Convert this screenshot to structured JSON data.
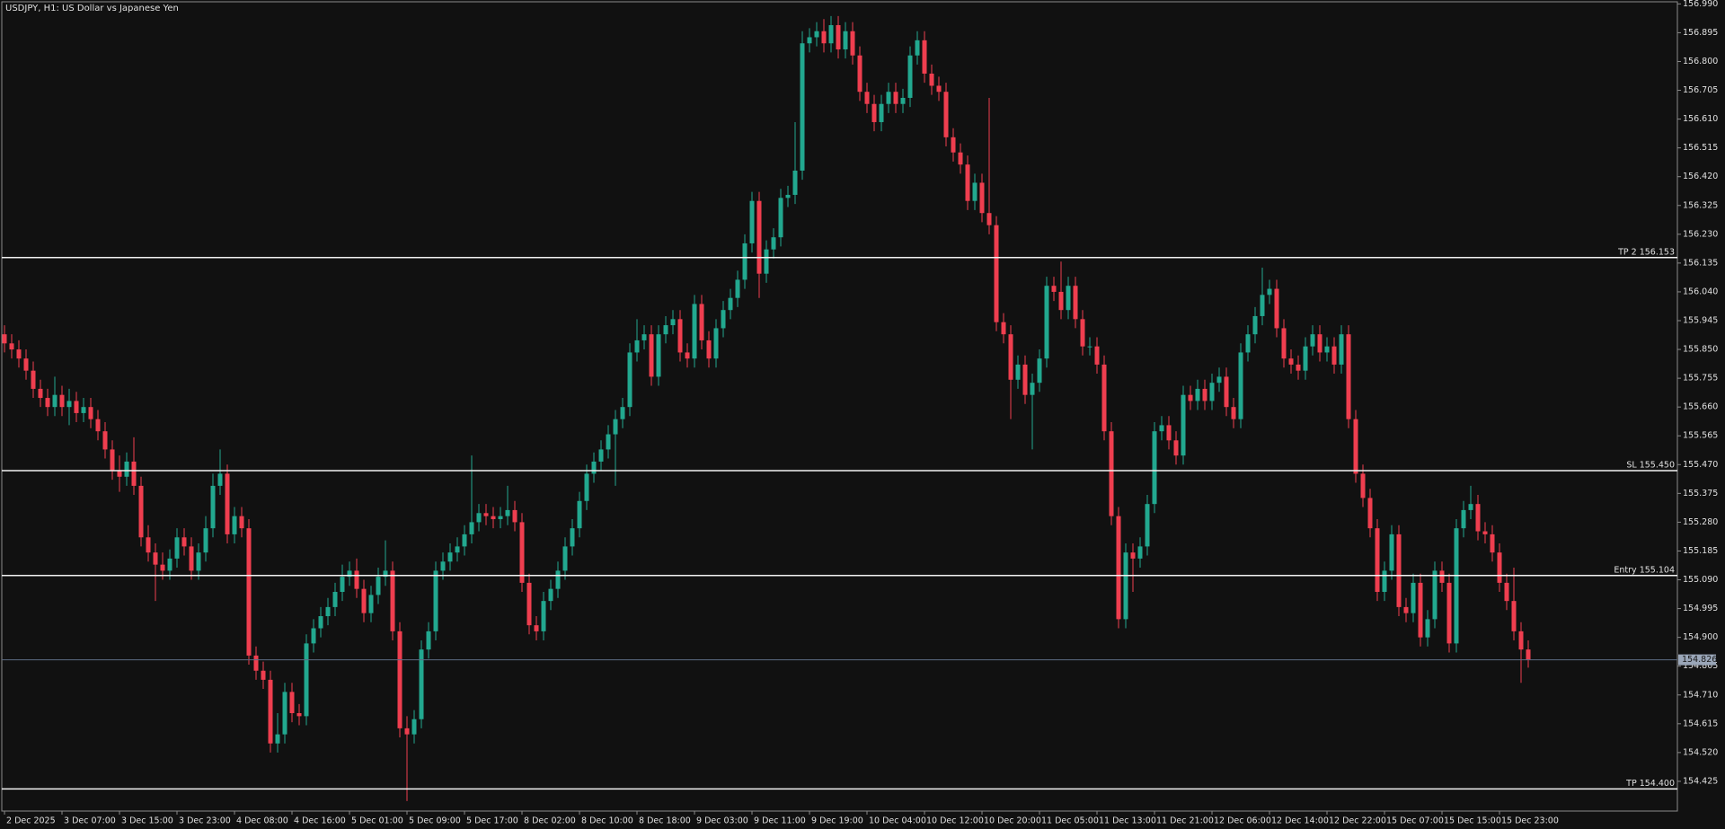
{
  "chart_data": {
    "type": "candlestick",
    "title": "USDJPY, H1:  US Dollar vs Japanese Yen",
    "up_color": "#22a88f",
    "down_color": "#ef3e4f",
    "ylim": [
      154.327,
      156.997
    ],
    "yticks": [
      {
        "value": 156.99,
        "label": "156.990"
      },
      156.895,
      {
        "value": 156.8,
        "label": "156.800"
      },
      156.705,
      {
        "value": 156.61,
        "label": "156.610"
      },
      156.515,
      {
        "value": 156.42,
        "label": "156.420"
      },
      156.325,
      {
        "value": 156.23,
        "label": "156.230"
      },
      156.135,
      {
        "value": 156.04,
        "label": "156.040"
      },
      155.945,
      {
        "value": 155.85,
        "label": "155.850"
      },
      155.755,
      {
        "value": 155.66,
        "label": "155.660"
      },
      155.565,
      {
        "value": 155.47,
        "label": "155.470"
      },
      155.375,
      {
        "value": 155.28,
        "label": "155.280"
      },
      155.185,
      {
        "value": 155.09,
        "label": "155.090"
      },
      154.995,
      {
        "value": 154.9,
        "label": "154.900"
      },
      154.805,
      {
        "value": 154.71,
        "label": "154.710"
      },
      154.615,
      {
        "value": 154.52,
        "label": "154.520"
      },
      154.425
    ],
    "levels": [
      {
        "value": 156.153,
        "label": "TP 2 156.153"
      },
      {
        "value": 155.45,
        "label": "SL 155.450"
      },
      {
        "value": 155.104,
        "label": "Entry 155.104"
      },
      {
        "value": 154.4,
        "label": "TP 154.400"
      }
    ],
    "price_line": {
      "value": 154.826,
      "label": "154.826"
    },
    "categories": [
      "2 Dec 2025",
      null,
      null,
      null,
      null,
      null,
      null,
      null,
      "3 Dec 07:00",
      null,
      null,
      null,
      null,
      null,
      null,
      null,
      "3 Dec 15:00",
      null,
      null,
      null,
      null,
      null,
      null,
      null,
      "3 Dec 23:00",
      null,
      null,
      null,
      null,
      null,
      null,
      null,
      "4 Dec 08:00",
      null,
      null,
      null,
      null,
      null,
      null,
      null,
      "4 Dec 16:00",
      null,
      null,
      null,
      null,
      null,
      null,
      null,
      "5 Dec 01:00",
      null,
      null,
      null,
      null,
      null,
      null,
      null,
      "5 Dec 09:00",
      null,
      null,
      null,
      null,
      null,
      null,
      null,
      "5 Dec 17:00",
      null,
      null,
      null,
      null,
      null,
      null,
      null,
      "8 Dec 02:00",
      null,
      null,
      null,
      null,
      null,
      null,
      null,
      "8 Dec 10:00",
      null,
      null,
      null,
      null,
      null,
      null,
      null,
      "8 Dec 18:00",
      null,
      null,
      null,
      null,
      null,
      null,
      null,
      "9 Dec 03:00",
      null,
      null,
      null,
      null,
      null,
      null,
      null,
      "9 Dec 11:00",
      null,
      null,
      null,
      null,
      null,
      null,
      null,
      "9 Dec 19:00",
      null,
      null,
      null,
      null,
      null,
      null,
      null,
      "10 Dec 04:00",
      null,
      null,
      null,
      null,
      null,
      null,
      null,
      "10 Dec 12:00",
      null,
      null,
      null,
      null,
      null,
      null,
      null,
      "10 Dec 20:00",
      null,
      null,
      null,
      null,
      null,
      null,
      null,
      "11 Dec 05:00",
      null,
      null,
      null,
      null,
      null,
      null,
      null,
      "11 Dec 13:00",
      null,
      null,
      null,
      null,
      null,
      null,
      null,
      "11 Dec 21:00",
      null,
      null,
      null,
      null,
      null,
      null,
      null,
      "12 Dec 06:00",
      null,
      null,
      null,
      null,
      null,
      null,
      null,
      "12 Dec 14:00",
      null,
      null,
      null,
      null,
      null,
      null,
      null,
      "12 Dec 22:00",
      null,
      null,
      null,
      null,
      null,
      null,
      null,
      "15 Dec 07:00",
      null,
      null,
      null,
      null,
      null,
      null,
      null,
      "15 Dec 15:00",
      null,
      null,
      null,
      null,
      null,
      null,
      null,
      "15 Dec 23:00",
      null,
      null,
      null,
      null
    ],
    "open": [
      155.9,
      155.87,
      155.85,
      155.82,
      155.78,
      155.72,
      155.69,
      155.66,
      155.7,
      155.66,
      155.68,
      155.64,
      155.66,
      155.62,
      155.58,
      155.52,
      155.45,
      155.43,
      155.48,
      155.4,
      155.23,
      155.18,
      155.14,
      155.12,
      155.16,
      155.23,
      155.2,
      155.12,
      155.18,
      155.26,
      155.4,
      155.44,
      155.24,
      155.3,
      155.26,
      154.84,
      154.79,
      154.76,
      154.55,
      154.58,
      154.72,
      154.65,
      154.64,
      154.88,
      154.93,
      154.97,
      155.0,
      155.05,
      155.1,
      155.12,
      155.06,
      154.98,
      155.04,
      155.1,
      155.12,
      154.92,
      154.6,
      154.58,
      154.63,
      154.86,
      154.92,
      155.12,
      155.15,
      155.18,
      155.2,
      155.24,
      155.28,
      155.31,
      155.3,
      155.29,
      155.3,
      155.32,
      155.28,
      155.08,
      154.94,
      154.92,
      155.02,
      155.06,
      155.12,
      155.2,
      155.26,
      155.35,
      155.44,
      155.48,
      155.52,
      155.57,
      155.62,
      155.66,
      155.84,
      155.88,
      155.9,
      155.76,
      155.9,
      155.93,
      155.95,
      155.84,
      155.82,
      156.0,
      155.88,
      155.82,
      155.92,
      155.98,
      156.02,
      156.08,
      156.2,
      156.34,
      156.1,
      156.18,
      156.22,
      156.35,
      156.36,
      156.44,
      156.86,
      156.88,
      156.9,
      156.86,
      156.92,
      156.84,
      156.9,
      156.82,
      156.7,
      156.66,
      156.6,
      156.66,
      156.7,
      156.66,
      156.68,
      156.82,
      156.87,
      156.76,
      156.72,
      156.7,
      156.55,
      156.5,
      156.46,
      156.34,
      156.4,
      156.3,
      156.26,
      155.94,
      155.9,
      155.75,
      155.8,
      155.7,
      155.74,
      155.82,
      156.06,
      156.04,
      155.98,
      156.06,
      155.95,
      155.86,
      155.86,
      155.8,
      155.58,
      155.3,
      154.96,
      155.18,
      155.16,
      155.2,
      155.34,
      155.58,
      155.6,
      155.55,
      155.5,
      155.7,
      155.68,
      155.72,
      155.68,
      155.74,
      155.76,
      155.66,
      155.62,
      155.84,
      155.9,
      155.96,
      156.03,
      156.05,
      155.92,
      155.82,
      155.8,
      155.78,
      155.86,
      155.9,
      155.84,
      155.86,
      155.8,
      155.9,
      155.62,
      155.44,
      155.36,
      155.26,
      155.05,
      155.12,
      155.24,
      155.0,
      154.98,
      155.08,
      154.9,
      154.96,
      155.12,
      155.08,
      154.88,
      155.26,
      155.32,
      155.34,
      155.25,
      155.24,
      155.18,
      155.08,
      155.02,
      154.92,
      154.86
    ],
    "high": [
      155.93,
      155.9,
      155.88,
      155.85,
      155.81,
      155.75,
      155.72,
      155.76,
      155.73,
      155.72,
      155.71,
      155.69,
      155.69,
      155.65,
      155.61,
      155.55,
      155.5,
      155.51,
      155.56,
      155.43,
      155.27,
      155.21,
      155.18,
      155.19,
      155.26,
      155.26,
      155.23,
      155.21,
      155.3,
      155.44,
      155.52,
      155.47,
      155.33,
      155.33,
      155.29,
      154.87,
      154.82,
      154.79,
      154.65,
      154.75,
      154.75,
      154.68,
      154.91,
      154.96,
      155.0,
      155.03,
      155.08,
      155.14,
      155.15,
      155.16,
      155.09,
      155.07,
      155.13,
      155.22,
      155.15,
      154.95,
      154.64,
      154.66,
      154.89,
      154.95,
      155.15,
      155.18,
      155.21,
      155.23,
      155.27,
      155.5,
      155.34,
      155.34,
      155.33,
      155.33,
      155.4,
      155.35,
      155.31,
      155.11,
      154.97,
      155.05,
      155.09,
      155.15,
      155.23,
      155.29,
      155.38,
      155.47,
      155.51,
      155.55,
      155.6,
      155.65,
      155.69,
      155.87,
      155.95,
      155.93,
      155.93,
      155.93,
      155.96,
      155.98,
      155.98,
      155.87,
      156.03,
      156.03,
      155.91,
      155.95,
      156.01,
      156.05,
      156.11,
      156.23,
      156.37,
      156.37,
      156.21,
      156.25,
      156.38,
      156.39,
      156.6,
      156.9,
      156.91,
      156.93,
      156.94,
      156.95,
      156.95,
      156.93,
      156.93,
      156.85,
      156.73,
      156.69,
      156.69,
      156.73,
      156.73,
      156.71,
      156.85,
      156.9,
      156.9,
      156.79,
      156.75,
      156.73,
      156.58,
      156.53,
      156.49,
      156.43,
      156.43,
      156.68,
      156.29,
      155.97,
      155.93,
      155.83,
      155.83,
      155.77,
      155.85,
      156.09,
      156.09,
      156.14,
      156.09,
      156.09,
      155.98,
      155.89,
      155.89,
      155.83,
      155.61,
      155.33,
      155.21,
      155.21,
      155.23,
      155.37,
      155.61,
      155.63,
      155.63,
      155.58,
      155.73,
      155.73,
      155.75,
      155.75,
      155.77,
      155.79,
      155.79,
      155.69,
      155.87,
      155.93,
      155.99,
      156.12,
      156.08,
      156.08,
      155.95,
      155.85,
      155.83,
      155.89,
      155.93,
      155.93,
      155.89,
      155.89,
      155.93,
      155.93,
      155.65,
      155.47,
      155.39,
      155.29,
      155.15,
      155.27,
      155.27,
      155.03,
      155.11,
      155.11,
      154.99,
      155.15,
      155.15,
      155.11,
      155.29,
      155.35,
      155.4,
      155.37,
      155.28,
      155.27,
      155.21,
      155.11,
      155.13,
      154.95,
      154.89
    ],
    "low": [
      155.84,
      155.82,
      155.79,
      155.75,
      155.69,
      155.66,
      155.63,
      155.63,
      155.63,
      155.6,
      155.61,
      155.61,
      155.59,
      155.55,
      155.49,
      155.42,
      155.38,
      155.4,
      155.37,
      155.2,
      155.15,
      155.02,
      155.09,
      155.09,
      155.13,
      155.17,
      155.09,
      155.09,
      155.15,
      155.23,
      155.37,
      155.21,
      155.21,
      155.23,
      154.81,
      154.76,
      154.73,
      154.52,
      154.52,
      154.55,
      154.62,
      154.61,
      154.61,
      154.85,
      154.9,
      154.94,
      154.97,
      155.02,
      155.07,
      155.03,
      154.95,
      154.95,
      155.01,
      155.07,
      154.89,
      154.57,
      154.36,
      154.55,
      154.6,
      154.83,
      154.89,
      155.09,
      155.12,
      155.15,
      155.17,
      155.21,
      155.25,
      155.27,
      155.26,
      155.26,
      155.27,
      155.25,
      155.05,
      154.91,
      154.89,
      154.89,
      154.99,
      155.03,
      155.09,
      155.17,
      155.23,
      155.32,
      155.41,
      155.45,
      155.49,
      155.4,
      155.59,
      155.63,
      155.81,
      155.85,
      155.73,
      155.73,
      155.87,
      155.9,
      155.81,
      155.79,
      155.79,
      155.85,
      155.79,
      155.79,
      155.89,
      155.95,
      155.99,
      156.05,
      156.17,
      156.02,
      156.07,
      156.15,
      156.19,
      156.32,
      156.33,
      156.41,
      156.83,
      156.85,
      156.83,
      156.83,
      156.81,
      156.81,
      156.79,
      156.67,
      156.63,
      156.57,
      156.57,
      156.63,
      156.63,
      156.63,
      156.65,
      156.79,
      156.73,
      156.69,
      156.67,
      156.52,
      156.47,
      156.43,
      156.31,
      156.31,
      156.27,
      156.23,
      155.91,
      155.87,
      155.62,
      155.72,
      155.67,
      155.52,
      155.71,
      155.79,
      156.01,
      155.95,
      155.95,
      155.92,
      155.83,
      155.83,
      155.77,
      155.55,
      155.27,
      154.93,
      154.93,
      155.05,
      155.13,
      155.17,
      155.31,
      155.55,
      155.52,
      155.47,
      155.47,
      155.65,
      155.65,
      155.65,
      155.65,
      155.71,
      155.63,
      155.59,
      155.59,
      155.81,
      155.87,
      155.93,
      156.0,
      155.89,
      155.79,
      155.77,
      155.75,
      155.75,
      155.83,
      155.81,
      155.81,
      155.77,
      155.77,
      155.59,
      155.41,
      155.33,
      155.23,
      155.02,
      155.02,
      155.09,
      154.97,
      154.95,
      154.95,
      154.87,
      154.87,
      154.93,
      155.05,
      154.85,
      154.85,
      155.23,
      155.29,
      155.22,
      155.21,
      155.15,
      155.05,
      154.99,
      154.89,
      154.75,
      154.8
    ],
    "close": [
      155.87,
      155.85,
      155.82,
      155.78,
      155.72,
      155.69,
      155.66,
      155.7,
      155.66,
      155.68,
      155.64,
      155.66,
      155.62,
      155.58,
      155.52,
      155.45,
      155.43,
      155.48,
      155.4,
      155.23,
      155.18,
      155.14,
      155.12,
      155.16,
      155.23,
      155.2,
      155.12,
      155.18,
      155.26,
      155.4,
      155.44,
      155.24,
      155.3,
      155.26,
      154.84,
      154.79,
      154.76,
      154.55,
      154.58,
      154.72,
      154.65,
      154.64,
      154.88,
      154.93,
      154.97,
      155.0,
      155.05,
      155.1,
      155.12,
      155.06,
      154.98,
      155.04,
      155.1,
      155.12,
      154.92,
      154.6,
      154.58,
      154.63,
      154.86,
      154.92,
      155.12,
      155.15,
      155.18,
      155.2,
      155.24,
      155.28,
      155.31,
      155.3,
      155.29,
      155.3,
      155.32,
      155.28,
      155.08,
      154.94,
      154.92,
      155.02,
      155.06,
      155.12,
      155.2,
      155.26,
      155.35,
      155.44,
      155.48,
      155.52,
      155.57,
      155.62,
      155.66,
      155.84,
      155.88,
      155.9,
      155.76,
      155.9,
      155.93,
      155.95,
      155.84,
      155.82,
      156.0,
      155.88,
      155.82,
      155.92,
      155.98,
      156.02,
      156.08,
      156.2,
      156.34,
      156.1,
      156.18,
      156.22,
      156.35,
      156.36,
      156.44,
      156.86,
      156.88,
      156.9,
      156.86,
      156.92,
      156.84,
      156.9,
      156.82,
      156.7,
      156.66,
      156.6,
      156.66,
      156.7,
      156.66,
      156.68,
      156.82,
      156.87,
      156.76,
      156.72,
      156.7,
      156.55,
      156.5,
      156.46,
      156.34,
      156.4,
      156.3,
      156.26,
      155.94,
      155.9,
      155.75,
      155.8,
      155.7,
      155.74,
      155.82,
      156.06,
      156.04,
      155.98,
      156.06,
      155.95,
      155.86,
      155.86,
      155.8,
      155.58,
      155.3,
      154.96,
      155.18,
      155.16,
      155.2,
      155.34,
      155.58,
      155.6,
      155.55,
      155.5,
      155.7,
      155.68,
      155.72,
      155.68,
      155.74,
      155.76,
      155.66,
      155.62,
      155.84,
      155.9,
      155.96,
      156.03,
      156.05,
      155.92,
      155.82,
      155.8,
      155.78,
      155.86,
      155.9,
      155.84,
      155.86,
      155.8,
      155.9,
      155.62,
      155.44,
      155.36,
      155.26,
      155.05,
      155.12,
      155.24,
      155.0,
      154.98,
      155.08,
      154.9,
      154.96,
      155.12,
      155.08,
      154.88,
      155.26,
      155.32,
      155.34,
      155.25,
      155.24,
      155.18,
      155.08,
      155.02,
      154.92,
      154.86,
      154.826
    ]
  }
}
